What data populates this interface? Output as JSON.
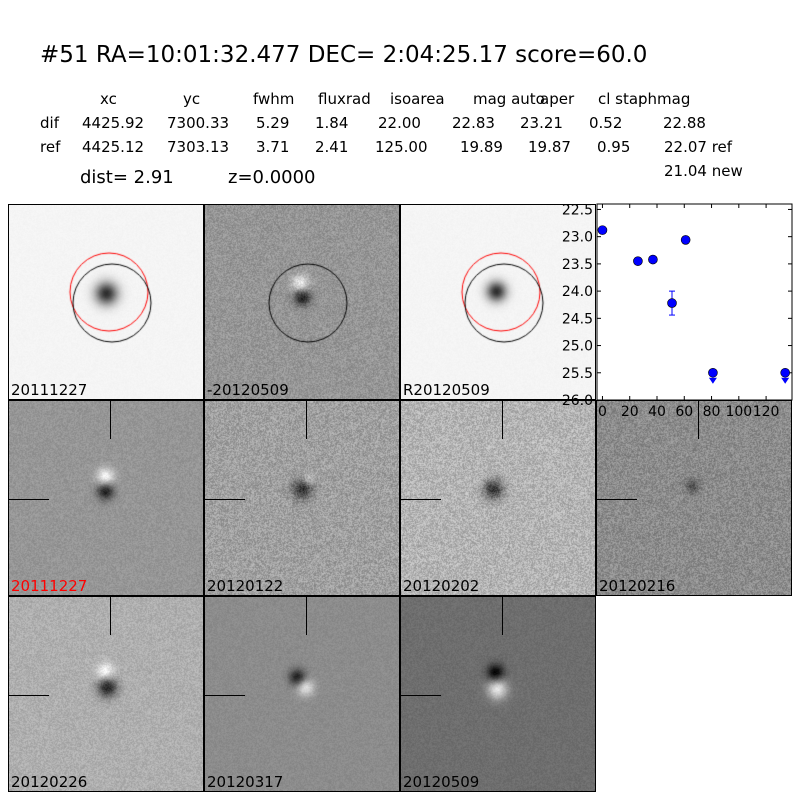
{
  "title": "#51   RA=10:01:32.477 DEC= 2:04:25.17      score=60.0",
  "table": {
    "headers": [
      "xc",
      "yc",
      "fwhm",
      "fluxrad",
      "isoarea",
      "mag auto",
      "aper",
      "cl star",
      "phmag"
    ],
    "rows": [
      {
        "label": "dif",
        "values": [
          "4425.92",
          "7300.33",
          "5.29",
          "1.84",
          "22.00",
          "22.83",
          "23.21",
          "0.52",
          "22.88"
        ]
      },
      {
        "label": "ref",
        "values": [
          "4425.12",
          "7303.13",
          "3.71",
          "2.41",
          "125.00",
          "19.89",
          "19.87",
          "0.95",
          "22.07 ref"
        ]
      }
    ],
    "extra": "21.04 new"
  },
  "dist": "dist=  2.91",
  "z": "z=0.0000",
  "panels": [
    {
      "label": "20111227",
      "color": "#000000",
      "circles": [
        "red",
        "black"
      ]
    },
    {
      "label": "-20120509",
      "color": "#000000",
      "circles": [
        "black"
      ]
    },
    {
      "label": "R20120509",
      "color": "#000000",
      "circles": [
        "red",
        "black"
      ]
    },
    {
      "label": "20111227",
      "color": "#ff0000"
    },
    {
      "label": "20120122",
      "color": "#000000"
    },
    {
      "label": "20120202",
      "color": "#000000"
    },
    {
      "label": "20120216",
      "color": "#000000"
    },
    {
      "label": "20120226",
      "color": "#000000"
    },
    {
      "label": "20120317",
      "color": "#000000"
    },
    {
      "label": "20120509",
      "color": "#000000"
    }
  ],
  "chart_data": {
    "type": "scatter",
    "xlim": [
      -4,
      139
    ],
    "ylim": [
      26.0,
      22.4
    ],
    "y_inverted": true,
    "xticks": [
      0,
      20,
      40,
      60,
      80,
      100,
      120
    ],
    "yticks": [
      "22.5",
      "23.0",
      "23.5",
      "24.0",
      "24.5",
      "25.0",
      "25.5",
      "26.0"
    ],
    "marker_color": "#0000ff",
    "points": [
      {
        "x": 0,
        "y": 22.88,
        "err": 0.02
      },
      {
        "x": 26,
        "y": 23.45,
        "err": 0.06
      },
      {
        "x": 37,
        "y": 23.42,
        "err": 0.05
      },
      {
        "x": 51,
        "y": 24.22,
        "err": 0.22
      },
      {
        "x": 61,
        "y": 23.06,
        "err": 0.03
      },
      {
        "x": 81,
        "y": 25.5,
        "upper_limit": true
      },
      {
        "x": 134,
        "y": 25.5,
        "upper_limit": true
      }
    ]
  }
}
